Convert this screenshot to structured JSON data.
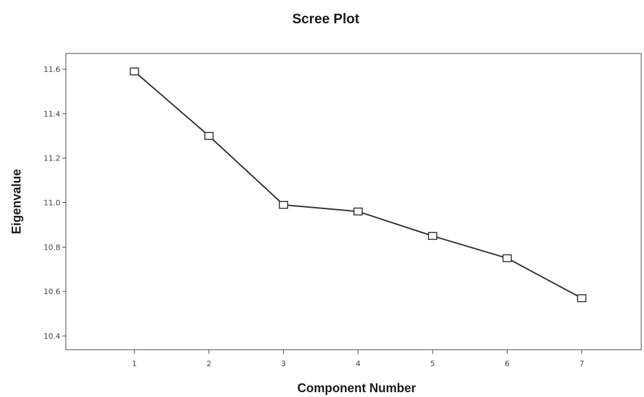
{
  "chart_data": {
    "type": "line",
    "title": "Scree Plot",
    "xlabel": "Component Number",
    "ylabel": "Eigenvalue",
    "categories": [
      "1",
      "2",
      "3",
      "4",
      "5",
      "6",
      "7"
    ],
    "series": [
      {
        "values": [
          11.59,
          11.3,
          10.99,
          10.96,
          10.85,
          10.75,
          10.57
        ]
      }
    ],
    "ylim": [
      10.4,
      11.65
    ],
    "yticks": [
      "10.4",
      "10.6",
      "10.8",
      "11.0",
      "11.2",
      "11.4",
      "11.6"
    ],
    "ytick_values": [
      10.4,
      10.6,
      10.8,
      11.0,
      11.2,
      11.4,
      11.6
    ],
    "marker": "square",
    "grid": false,
    "colors": {
      "line": "#333333",
      "axis": "#444444",
      "text": "#1a1a1a"
    }
  }
}
